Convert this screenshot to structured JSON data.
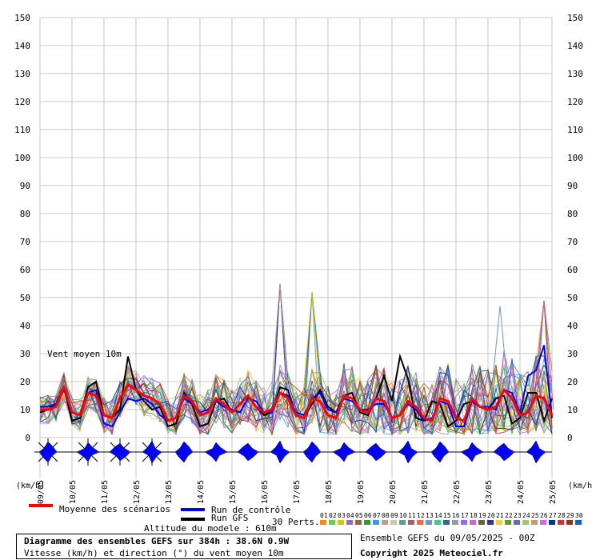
{
  "chart_data": {
    "type": "line",
    "title": "Diagramme des ensembles GEFS sur 384h : 38.6N 0.9W",
    "subtitle": "Vitesse (km/h) et direction (°) du vent moyen 10m",
    "annotation": "Vent moyen 10m",
    "altitude_label": "Altitude du modele : 610m",
    "ensemble_label": "Ensemble GEFS du 09/05/2025 - 00Z",
    "copyright": "Copyright 2025 Meteociel.fr",
    "unit_left": "(km/h)",
    "unit_right": "(km/h)",
    "ylim": [
      0,
      150
    ],
    "yticks": [
      0,
      10,
      20,
      30,
      40,
      50,
      60,
      70,
      80,
      90,
      100,
      110,
      120,
      130,
      140,
      150
    ],
    "xlim": [
      0,
      384
    ],
    "date_labels": [
      "09/05",
      "10/05",
      "11/05",
      "12/05",
      "13/05",
      "14/05",
      "15/05",
      "16/05",
      "17/05",
      "18/05",
      "19/05",
      "20/05",
      "21/05",
      "22/05",
      "23/05",
      "24/05",
      "25/05"
    ],
    "grid": true,
    "legend": [
      {
        "name": "Moyenne des scénarios",
        "color": "#ff0000"
      },
      {
        "name": "Run de contrôle",
        "color": "#0000ff"
      },
      {
        "name": "Run GFS",
        "color": "#000000"
      }
    ],
    "perturbations_label": "30 Perts.",
    "perturbation_ids": [
      "01",
      "02",
      "03",
      "04",
      "05",
      "06",
      "07",
      "08",
      "09",
      "10",
      "11",
      "12",
      "13",
      "14",
      "15",
      "16",
      "17",
      "18",
      "19",
      "20",
      "21",
      "22",
      "23",
      "24",
      "25",
      "26",
      "27",
      "28",
      "29",
      "30"
    ],
    "perturbation_colors": [
      "#ff8c00",
      "#66cc66",
      "#cccc00",
      "#9966cc",
      "#996633",
      "#339933",
      "#3399ff",
      "#cc9999",
      "#cccc99",
      "#669999",
      "#996666",
      "#ff6633",
      "#6699cc",
      "#33cc99",
      "#336699",
      "#999999",
      "#9966ff",
      "#cc66cc",
      "#666633",
      "#333399",
      "#ffcc33",
      "#669933",
      "#6666cc",
      "#99cc66",
      "#cc9966",
      "#cc66ff",
      "#003399",
      "#cc3333",
      "#993300",
      "#0066cc"
    ],
    "x_hours": [
      0,
      6,
      12,
      18,
      24,
      30,
      36,
      42,
      48,
      54,
      60,
      66,
      72,
      78,
      84,
      90,
      96,
      102,
      108,
      114,
      120,
      126,
      132,
      138,
      144,
      150,
      156,
      162,
      168,
      174,
      180,
      186,
      192,
      198,
      204,
      210,
      216,
      222,
      228,
      234,
      240,
      246,
      252,
      258,
      264,
      270,
      276,
      282,
      288,
      294,
      300,
      306,
      312,
      318,
      324,
      330,
      336,
      342,
      348,
      354,
      360,
      366,
      372,
      378,
      384
    ],
    "series": [
      {
        "name": "Moyenne des scénarios",
        "values": [
          10,
          10,
          11,
          18,
          9,
          8,
          16,
          15,
          8,
          7,
          14,
          19,
          17,
          15,
          14,
          12,
          6,
          7,
          15,
          13,
          8,
          9,
          14,
          12,
          9,
          12,
          15,
          11,
          9,
          10,
          16,
          14,
          8,
          7,
          14,
          13,
          8,
          7,
          15,
          14,
          10,
          9,
          14,
          13,
          7,
          8,
          13,
          11,
          7,
          6,
          14,
          13,
          7,
          6,
          14,
          11,
          10,
          11,
          17,
          14,
          8,
          9,
          15,
          14,
          8
        ],
        "color": "#ff0000"
      },
      {
        "name": "Run de contrôle",
        "values": [
          11,
          11,
          12,
          17,
          9,
          8,
          16,
          17,
          5,
          4,
          9,
          14,
          13,
          14,
          12,
          8,
          6,
          7,
          14,
          12,
          9,
          10,
          13,
          11,
          10,
          9,
          14,
          13,
          9,
          9,
          16,
          15,
          9,
          8,
          14,
          16,
          10,
          9,
          14,
          13,
          10,
          10,
          12,
          12,
          7,
          8,
          12,
          10,
          6,
          7,
          13,
          12,
          4,
          4,
          13,
          11,
          11,
          10,
          17,
          16,
          9,
          22,
          24,
          33,
          7
        ],
        "color": "#0000ff"
      },
      {
        "name": "Run GFS",
        "values": [
          9,
          10,
          12,
          18,
          6,
          7,
          18,
          20,
          8,
          7,
          10,
          29,
          17,
          13,
          10,
          11,
          4,
          5,
          16,
          12,
          4,
          5,
          13,
          14,
          9,
          12,
          15,
          11,
          8,
          9,
          18,
          17,
          8,
          7,
          12,
          17,
          11,
          9,
          15,
          16,
          9,
          8,
          14,
          22,
          13,
          29,
          21,
          7,
          6,
          13,
          12,
          4,
          6,
          12,
          13,
          11,
          10,
          14,
          15,
          5,
          7,
          16,
          16,
          6,
          14
        ],
        "color": "#000000"
      }
    ],
    "members_envelope": {
      "note": "30 thin perturbation lines",
      "peaks": [
        {
          "x": 204,
          "y": 52
        },
        {
          "x": 180,
          "y": 55
        },
        {
          "x": 345,
          "y": 47
        },
        {
          "x": 378,
          "y": 49
        }
      ]
    },
    "wind_roses": [
      "n",
      "n",
      "n",
      "n",
      "n",
      "n",
      "n",
      "n",
      "n",
      "n",
      "n",
      "n",
      "n",
      "n",
      "n",
      "n"
    ]
  }
}
